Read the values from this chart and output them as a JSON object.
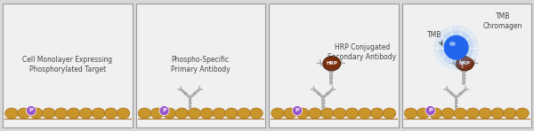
{
  "bg_color": "#d8d8d8",
  "white_panel": "#f0f0f0",
  "border_color": "#999999",
  "cell_color": "#c8952a",
  "cell_outline": "#a87020",
  "phospho_color": "#9955cc",
  "antibody_color": "#aaaaaa",
  "antibody_dark": "#888888",
  "hrp_color": "#7a3010",
  "hrp_light": "#a04010",
  "tmb_color": "#2266ee",
  "tmb_glow": "#66aaff",
  "arrow_color": "#444444",
  "text_color": "#444444",
  "panels": [
    {
      "label1": "Cell Monolayer Expressing",
      "label2": "Phosphorylated Target",
      "show_primary": false,
      "show_secondary": false,
      "show_hrp": false,
      "show_tmb": false
    },
    {
      "label1": "Phospho-Specific",
      "label2": "Primary Antibody",
      "show_primary": true,
      "show_secondary": false,
      "show_hrp": false,
      "show_tmb": false
    },
    {
      "label1": "HRP Conjugated",
      "label2": "Secondary Antibody",
      "show_primary": true,
      "show_secondary": true,
      "show_hrp": true,
      "show_tmb": false
    },
    {
      "label1": "TMB",
      "label2": "Chromagen",
      "show_primary": true,
      "show_secondary": true,
      "show_hrp": true,
      "show_tmb": true
    }
  ],
  "figsize": [
    6.0,
    1.48
  ],
  "dpi": 100
}
